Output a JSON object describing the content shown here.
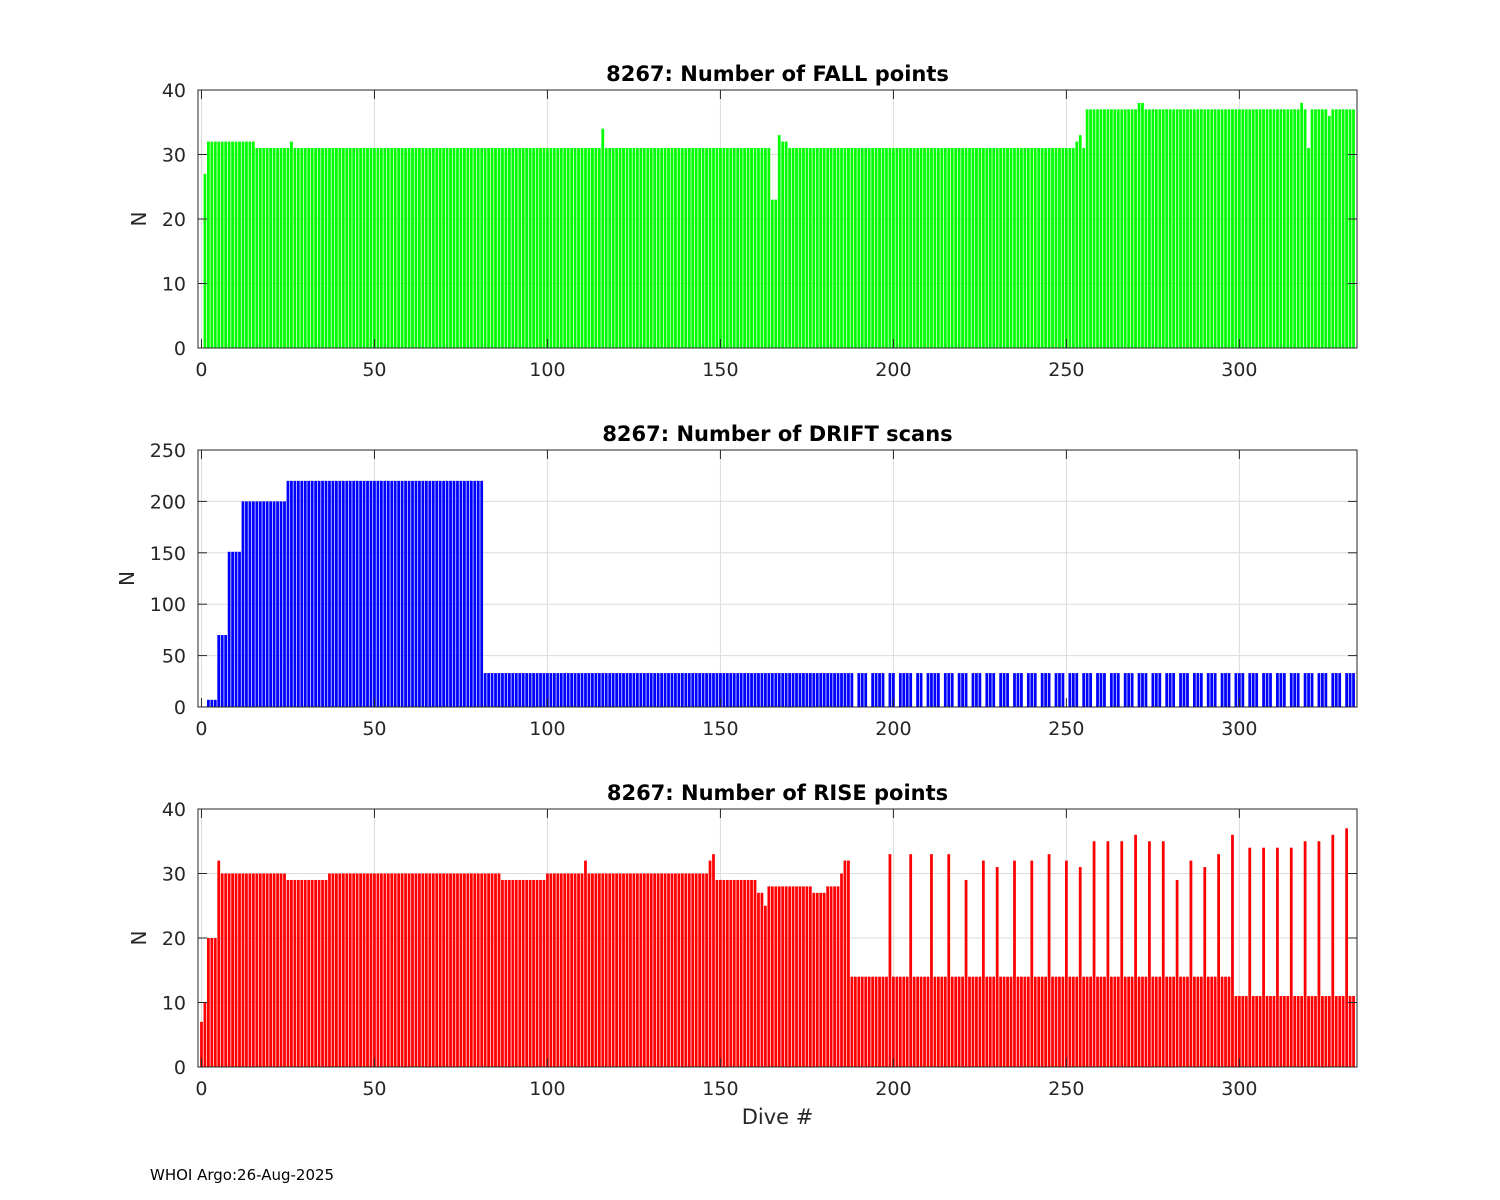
{
  "footer": {
    "text": "WHOI Argo:26-Aug-2025"
  },
  "chart_data": [
    {
      "type": "bar",
      "title": "8267: Number of FALL points",
      "xlabel": "",
      "ylabel": "N",
      "xlim": [
        -1,
        334
      ],
      "ylim": [
        0,
        40
      ],
      "xticks": [
        0,
        50,
        100,
        150,
        200,
        250,
        300
      ],
      "yticks": [
        0,
        10,
        20,
        30,
        40
      ],
      "color": "#00ff00",
      "grid": true,
      "segments": [
        [
          0,
          0,
          0
        ],
        [
          1,
          1,
          27
        ],
        [
          2,
          15,
          32
        ],
        [
          16,
          25,
          31
        ],
        [
          26,
          26,
          32
        ],
        [
          27,
          115,
          31
        ],
        [
          116,
          116,
          34
        ],
        [
          117,
          164,
          31
        ],
        [
          165,
          166,
          23
        ],
        [
          167,
          167,
          33
        ],
        [
          168,
          169,
          32
        ],
        [
          170,
          252,
          31
        ],
        [
          253,
          253,
          32
        ],
        [
          254,
          254,
          33
        ],
        [
          255,
          255,
          31
        ],
        [
          256,
          270,
          37
        ],
        [
          271,
          272,
          38
        ],
        [
          273,
          317,
          37
        ],
        [
          318,
          318,
          38
        ],
        [
          319,
          319,
          37
        ],
        [
          320,
          320,
          31
        ],
        [
          321,
          325,
          37
        ],
        [
          326,
          326,
          36
        ],
        [
          327,
          333,
          37
        ]
      ]
    },
    {
      "type": "bar",
      "title": "8267: Number of DRIFT scans",
      "xlabel": "",
      "ylabel": "N",
      "xlim": [
        -1,
        334
      ],
      "ylim": [
        0,
        250
      ],
      "xticks": [
        0,
        50,
        100,
        150,
        200,
        250,
        300
      ],
      "yticks": [
        0,
        50,
        100,
        150,
        200,
        250
      ],
      "color": "#0000ff",
      "grid": true,
      "segments": [
        [
          0,
          0,
          0
        ],
        [
          1,
          1,
          0
        ],
        [
          2,
          4,
          7
        ],
        [
          5,
          7,
          70
        ],
        [
          8,
          11,
          151
        ],
        [
          12,
          24,
          200
        ],
        [
          25,
          81,
          220
        ],
        [
          82,
          186,
          33
        ],
        [
          187,
          333,
          33
        ]
      ],
      "zero_dives": [
        189,
        193,
        198,
        201,
        206,
        209,
        214,
        218,
        222,
        226,
        230,
        234,
        238,
        242,
        246,
        250,
        254,
        258,
        262,
        266,
        270,
        274,
        278,
        282,
        286,
        290,
        294,
        298,
        302,
        306,
        310,
        314,
        318,
        322,
        326,
        330
      ]
    },
    {
      "type": "bar",
      "title": "8267: Number of RISE points",
      "xlabel": "Dive #",
      "ylabel": "N",
      "xlim": [
        -1,
        334
      ],
      "ylim": [
        0,
        40
      ],
      "xticks": [
        0,
        50,
        100,
        150,
        200,
        250,
        300
      ],
      "yticks": [
        0,
        10,
        20,
        30,
        40
      ],
      "color": "#ff0000",
      "grid": true,
      "segments": [
        [
          0,
          0,
          7
        ],
        [
          1,
          1,
          10
        ],
        [
          2,
          4,
          20
        ],
        [
          5,
          5,
          32
        ],
        [
          6,
          24,
          30
        ],
        [
          25,
          36,
          29
        ],
        [
          37,
          86,
          30
        ],
        [
          87,
          99,
          29
        ],
        [
          100,
          110,
          30
        ],
        [
          111,
          111,
          32
        ],
        [
          112,
          146,
          30
        ],
        [
          147,
          147,
          32
        ],
        [
          148,
          148,
          33
        ],
        [
          149,
          160,
          29
        ],
        [
          161,
          162,
          27
        ],
        [
          163,
          163,
          25
        ],
        [
          164,
          176,
          28
        ],
        [
          177,
          180,
          27
        ],
        [
          181,
          184,
          28
        ],
        [
          185,
          185,
          30
        ],
        [
          186,
          187,
          32
        ],
        [
          188,
          297,
          14
        ],
        [
          298,
          333,
          11
        ]
      ],
      "spikes": [
        [
          199,
          33
        ],
        [
          205,
          33
        ],
        [
          211,
          33
        ],
        [
          216,
          33
        ],
        [
          221,
          29
        ],
        [
          226,
          32
        ],
        [
          230,
          31
        ],
        [
          235,
          32
        ],
        [
          240,
          32
        ],
        [
          245,
          33
        ],
        [
          250,
          32
        ],
        [
          254,
          31
        ],
        [
          258,
          35
        ],
        [
          262,
          35
        ],
        [
          266,
          35
        ],
        [
          270,
          36
        ],
        [
          274,
          35
        ],
        [
          278,
          35
        ],
        [
          282,
          29
        ],
        [
          286,
          32
        ],
        [
          290,
          31
        ],
        [
          294,
          33
        ],
        [
          298,
          36
        ],
        [
          303,
          34
        ],
        [
          307,
          34
        ],
        [
          311,
          34
        ],
        [
          315,
          34
        ],
        [
          319,
          35
        ],
        [
          323,
          35
        ],
        [
          327,
          36
        ],
        [
          331,
          37
        ]
      ]
    }
  ]
}
